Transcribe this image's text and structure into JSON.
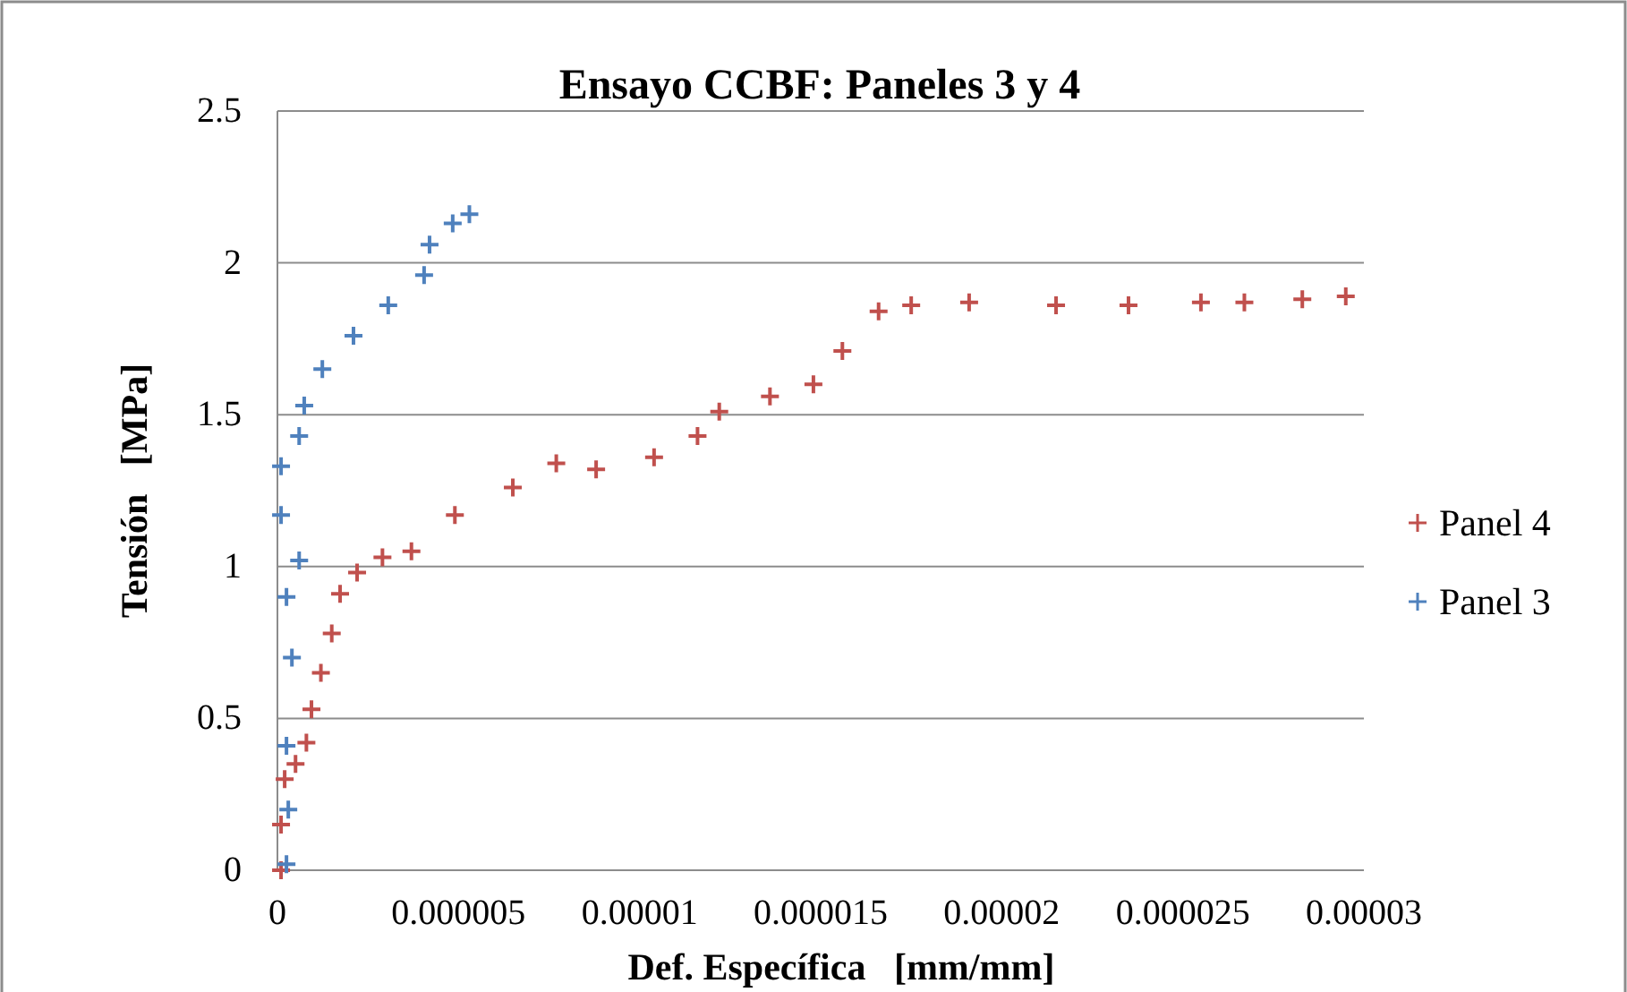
{
  "chart_data": {
    "type": "scatter",
    "title": "Ensayo CCBF: Paneles 3 y 4",
    "xlabel": "Def. Específica   [mm/mm]",
    "ylabel": "Tensión   [MPa]",
    "xlim": [
      0,
      3e-05
    ],
    "xticks": [
      0,
      {
        "value": 5e-06,
        "label": "0.000005"
      },
      {
        "value": 1e-05,
        "label": "0.00001"
      },
      {
        "value": 1.5e-05,
        "label": "0.000015"
      },
      {
        "value": 2e-05,
        "label": "0.00002"
      },
      {
        "value": 2.5e-05,
        "label": "0.000025"
      },
      {
        "value": 3e-05,
        "label": "0.00003"
      }
    ],
    "ylim": [
      0,
      2.5
    ],
    "yticks": [
      0,
      0.5,
      1,
      1.5,
      2,
      2.5
    ],
    "grid": "y",
    "legend": "right",
    "marker": "cross",
    "series": [
      {
        "name": "Panel 4",
        "color": "#c0504d",
        "x": [
          1e-07,
          1e-07,
          2e-07,
          5e-07,
          8e-07,
          9.4e-07,
          1.2e-06,
          1.5e-06,
          1.73e-06,
          2.2e-06,
          2.9e-06,
          3.7e-06,
          4.9e-06,
          6.5e-06,
          7.7e-06,
          8.8e-06,
          1.04e-05,
          1.16e-05,
          1.22e-05,
          1.36e-05,
          1.48e-05,
          1.56e-05,
          1.66e-05,
          1.75e-05,
          1.91e-05,
          2.15e-05,
          2.35e-05,
          2.55e-05,
          2.67e-05,
          2.83e-05,
          2.95e-05
        ],
        "values": [
          0.0,
          0.15,
          0.3,
          0.35,
          0.42,
          0.53,
          0.65,
          0.78,
          0.91,
          0.98,
          1.03,
          1.05,
          1.17,
          1.26,
          1.34,
          1.32,
          1.36,
          1.43,
          1.51,
          1.56,
          1.6,
          1.71,
          1.84,
          1.86,
          1.87,
          1.86,
          1.86,
          1.87,
          1.87,
          1.88,
          1.89
        ]
      },
      {
        "name": "Panel 3",
        "color": "#4f81bd",
        "x": [
          2.5e-07,
          3e-07,
          2.5e-07,
          4e-07,
          2.5e-07,
          6e-07,
          1e-07,
          1e-07,
          6e-07,
          7.4e-07,
          1.24e-06,
          2.1e-06,
          3.06e-06,
          4.05e-06,
          4.2e-06,
          4.84e-06,
          5.3e-06
        ],
        "values": [
          0.02,
          0.2,
          0.41,
          0.7,
          0.9,
          1.02,
          1.17,
          1.33,
          1.43,
          1.53,
          1.65,
          1.76,
          1.86,
          1.96,
          2.06,
          2.13,
          2.16
        ]
      }
    ]
  }
}
